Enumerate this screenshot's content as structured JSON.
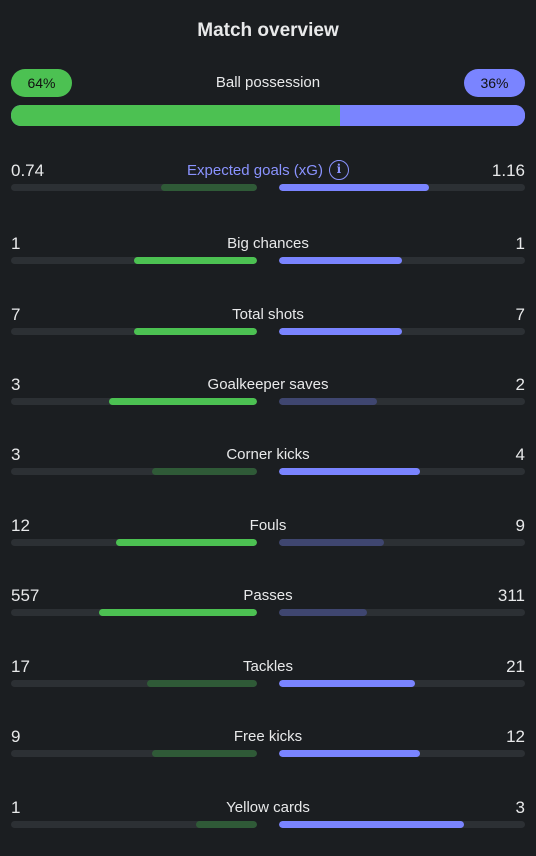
{
  "title": "Match overview",
  "possession": {
    "label": "Ball possession",
    "home_value": "64%",
    "away_value": "36%",
    "home_fraction": 0.64,
    "away_fraction": 0.36,
    "home_color": "#4cc152",
    "away_color": "#7a84ff"
  },
  "stats": [
    {
      "label": "Expected goals (xG)",
      "home": "0.74",
      "away": "1.16",
      "home_n": 0.74,
      "away_n": 1.16,
      "accent": true,
      "icon": "info-icon"
    },
    {
      "label": "Big chances",
      "home": "1",
      "away": "1",
      "home_n": 1,
      "away_n": 1
    },
    {
      "label": "Total shots",
      "home": "7",
      "away": "7",
      "home_n": 7,
      "away_n": 7
    },
    {
      "label": "Goalkeeper saves",
      "home": "3",
      "away": "2",
      "home_n": 3,
      "away_n": 2
    },
    {
      "label": "Corner kicks",
      "home": "3",
      "away": "4",
      "home_n": 3,
      "away_n": 4
    },
    {
      "label": "Fouls",
      "home": "12",
      "away": "9",
      "home_n": 12,
      "away_n": 9
    },
    {
      "label": "Passes",
      "home": "557",
      "away": "311",
      "home_n": 557,
      "away_n": 311
    },
    {
      "label": "Tackles",
      "home": "17",
      "away": "21",
      "home_n": 17,
      "away_n": 21
    },
    {
      "label": "Free kicks",
      "home": "9",
      "away": "12",
      "home_n": 9,
      "away_n": 12
    },
    {
      "label": "Yellow cards",
      "home": "1",
      "away": "3",
      "home_n": 1,
      "away_n": 3
    }
  ]
}
